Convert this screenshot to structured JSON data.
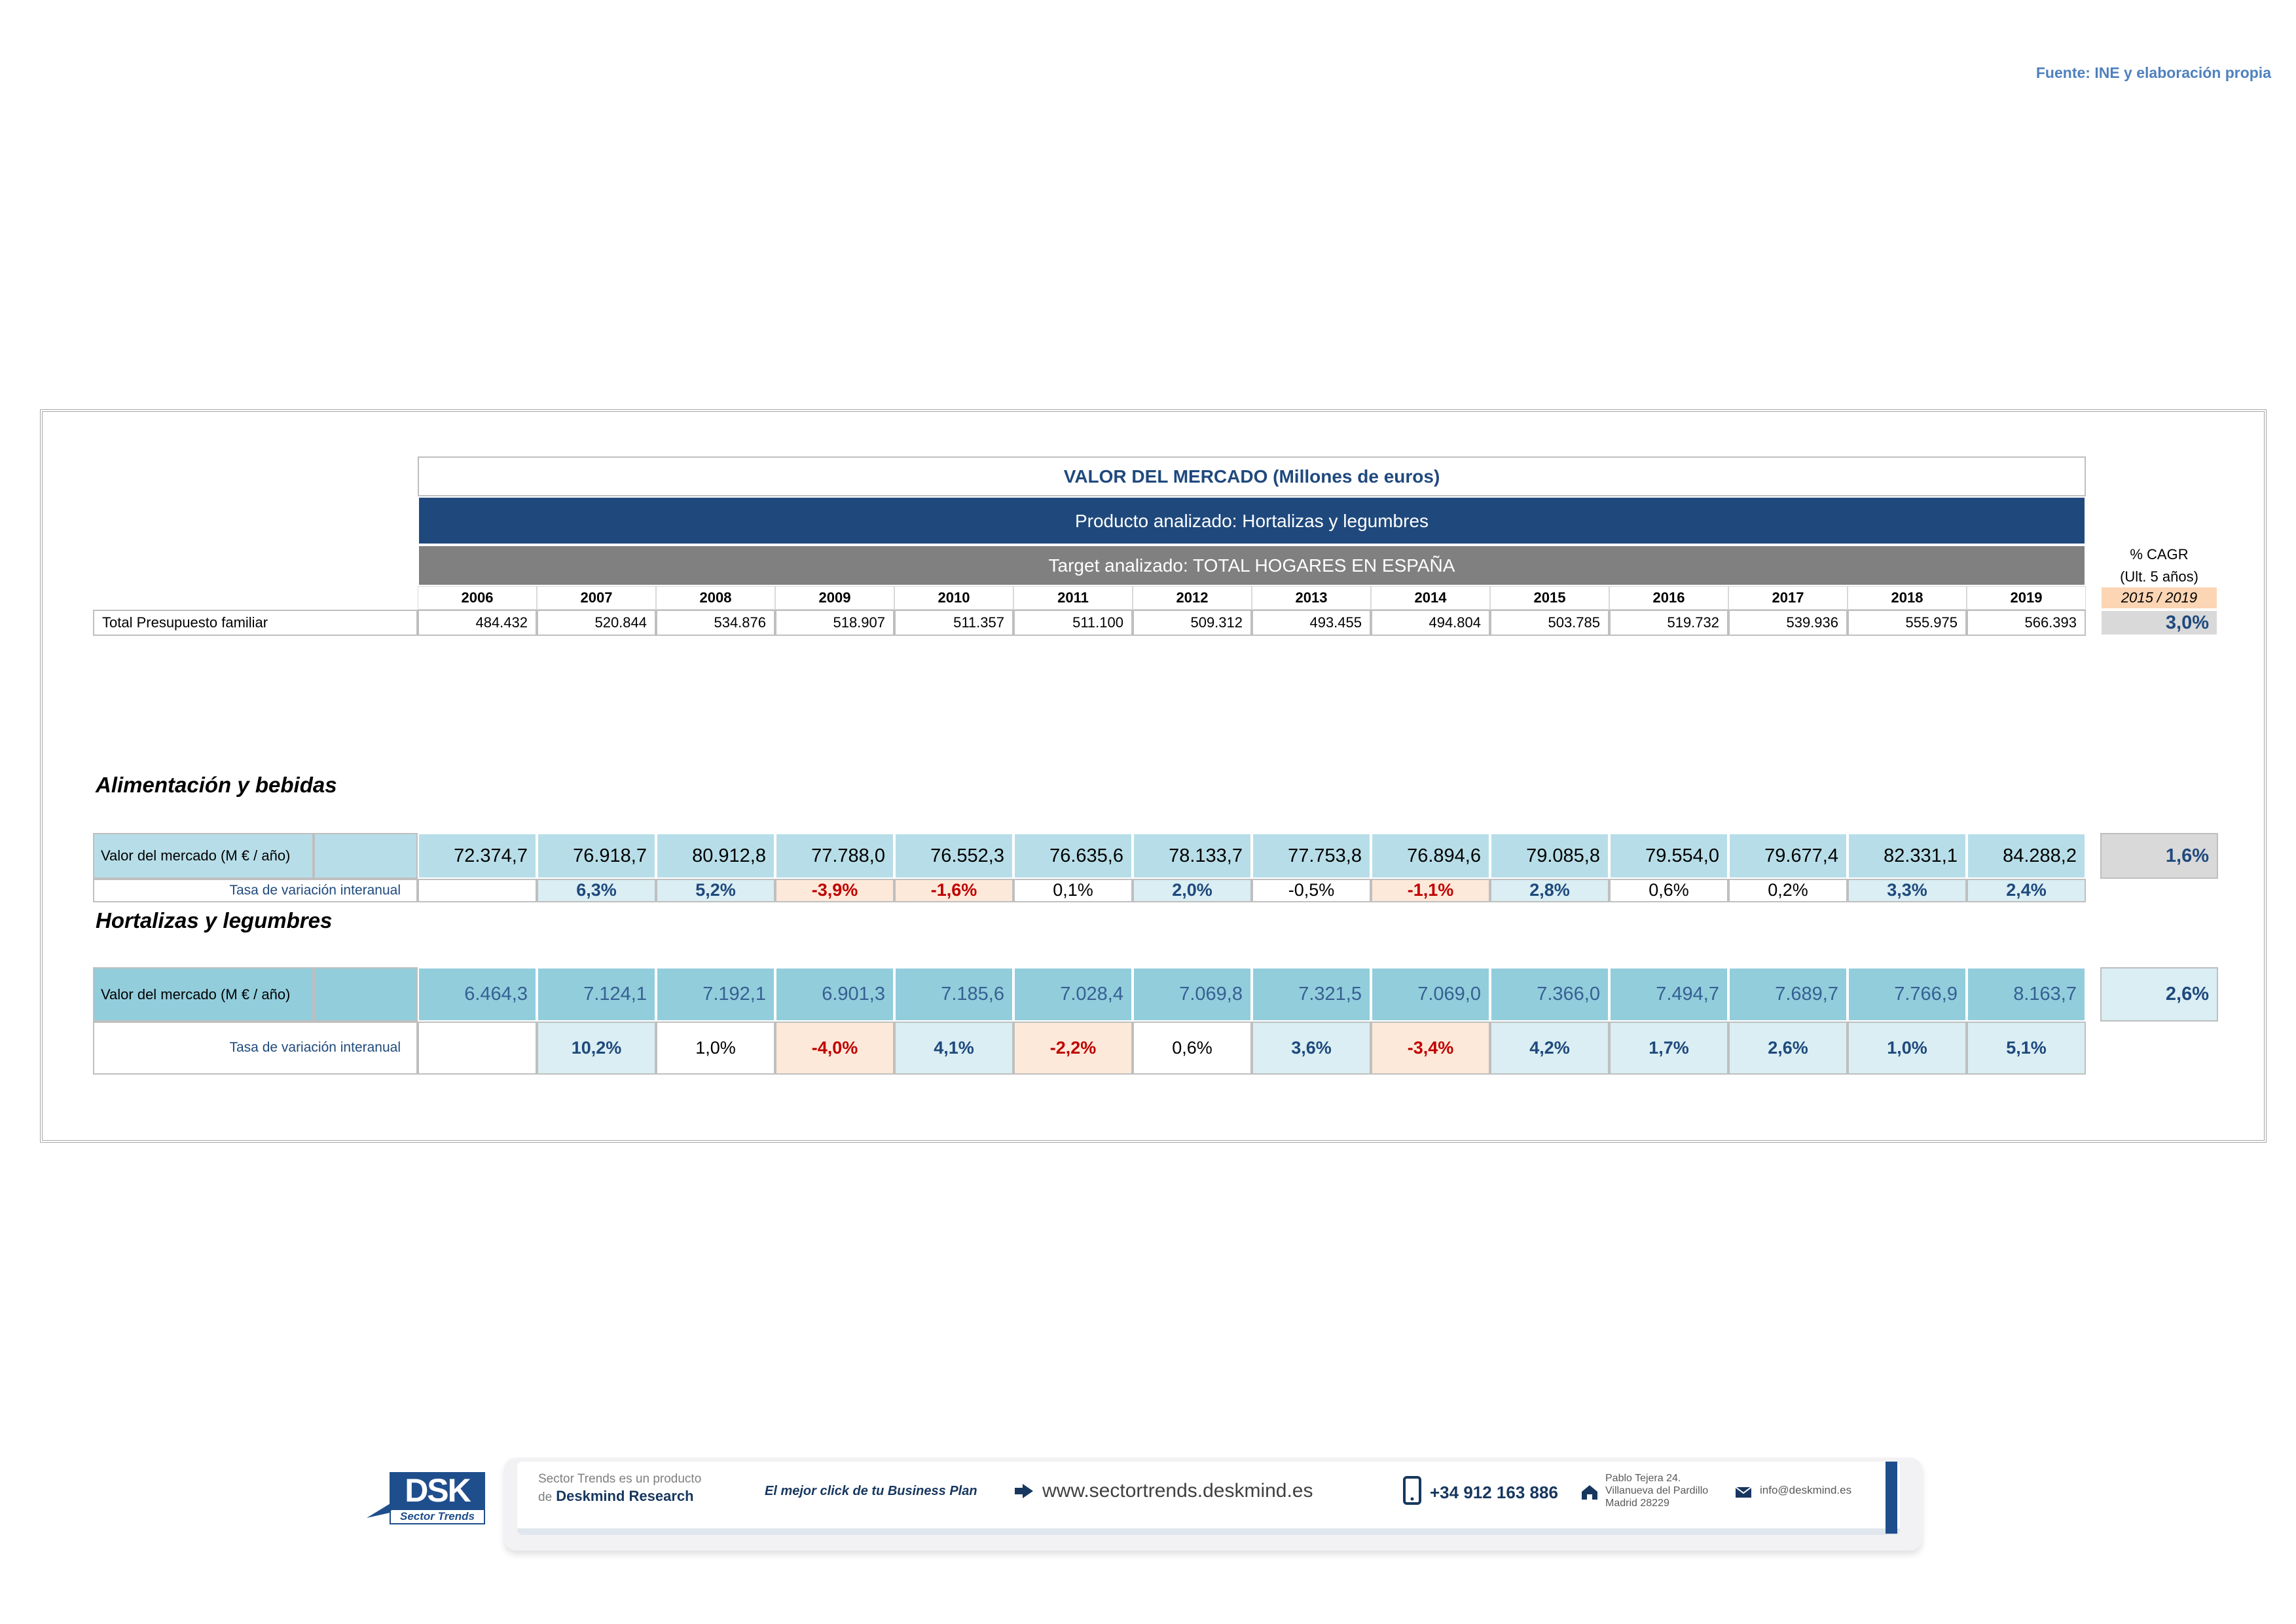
{
  "source": "Fuente: INE y elaboración propia",
  "table": {
    "title": "VALOR DEL MERCADO (Millones de euros)",
    "product": "Producto analizado: Hortalizas y legumbres",
    "target": "Target analizado: TOTAL HOGARES EN ESPAÑA",
    "cagr_label": "% CAGR",
    "cagr_sub": "(Ult. 5 años)",
    "cagr_period": "2015 / 2019",
    "years": [
      "2006",
      "2007",
      "2008",
      "2009",
      "2010",
      "2011",
      "2012",
      "2013",
      "2014",
      "2015",
      "2016",
      "2017",
      "2018",
      "2019"
    ],
    "total": {
      "label": "Total Presupuesto familiar",
      "values": [
        "484.432",
        "520.844",
        "534.876",
        "518.907",
        "511.357",
        "511.100",
        "509.312",
        "493.455",
        "494.804",
        "503.785",
        "519.732",
        "539.936",
        "555.975",
        "566.393"
      ],
      "cagr": "3,0%"
    }
  },
  "sections": [
    {
      "title": "Alimentación y bebidas",
      "value_label": "Valor del mercado (M € / año)",
      "values": [
        "72.374,7",
        "76.918,7",
        "80.912,8",
        "77.788,0",
        "76.552,3",
        "76.635,6",
        "78.133,7",
        "77.753,8",
        "76.894,6",
        "79.085,8",
        "79.554,0",
        "79.677,4",
        "82.331,1",
        "84.288,2"
      ],
      "cagr": "1,6%",
      "rate_label": "Tasa de variación interanual",
      "rates": [
        null,
        "6,3%",
        "5,2%",
        "-3,9%",
        "-1,6%",
        "0,1%",
        "2,0%",
        "-0,5%",
        "-1,1%",
        "2,8%",
        "0,6%",
        "0,2%",
        "3,3%",
        "2,4%"
      ]
    },
    {
      "title": "Hortalizas y legumbres",
      "value_label": "Valor del mercado (M € / año)",
      "values": [
        "6.464,3",
        "7.124,1",
        "7.192,1",
        "6.901,3",
        "7.185,6",
        "7.028,4",
        "7.069,8",
        "7.321,5",
        "7.069,0",
        "7.366,0",
        "7.494,7",
        "7.689,7",
        "7.766,9",
        "8.163,7"
      ],
      "cagr": "2,6%",
      "rate_label": "Tasa de variación interanual",
      "rates": [
        null,
        "10,2%",
        "1,0%",
        "-4,0%",
        "4,1%",
        "-2,2%",
        "0,6%",
        "3,6%",
        "-3,4%",
        "4,2%",
        "1,7%",
        "2,6%",
        "1,0%",
        "5,1%"
      ]
    }
  ],
  "footer": {
    "logo": "DSK",
    "logo_sub": "Sector Trends",
    "intro": "Sector Trends es un producto",
    "intro_de": "de",
    "company": "Deskmind Research",
    "slogan": "El mejor click de tu Business Plan",
    "web": "www.sectortrends.deskmind.es",
    "phone": "+34 912 163 886",
    "address": [
      "Pablo Tejera 24.",
      "Villanueva del Pardillo",
      "Madrid 28229"
    ],
    "email": "info@deskmind.es"
  }
}
